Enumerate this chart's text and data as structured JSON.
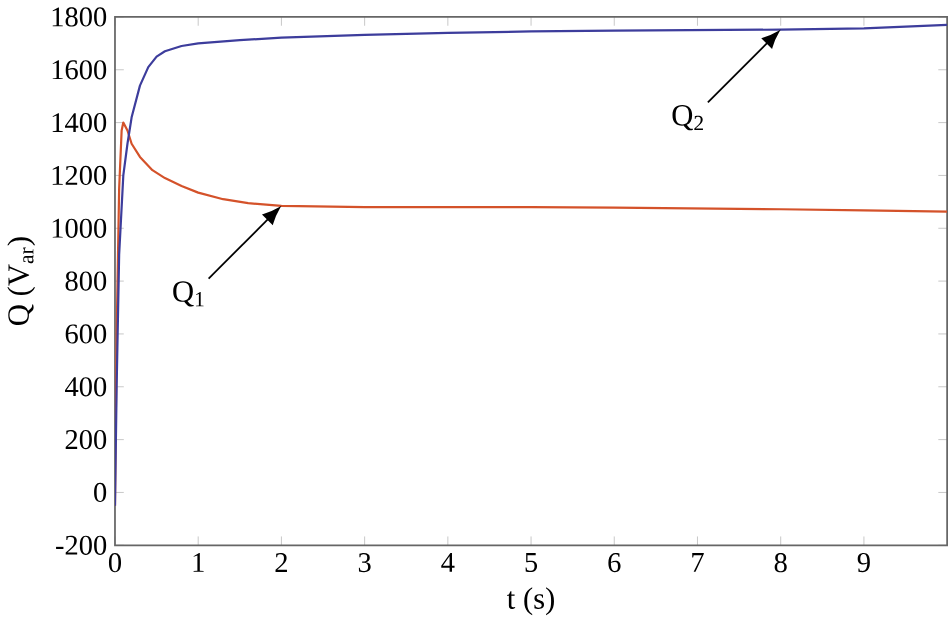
{
  "chart_data": {
    "type": "line",
    "xlabel": "t (s)",
    "ylabel": "Q (V$_{ar}$)",
    "xlim": [
      0,
      10
    ],
    "ylim": [
      -200,
      1800
    ],
    "xticks": [
      0,
      1,
      2,
      3,
      4,
      5,
      6,
      7,
      8,
      9
    ],
    "yticks": [
      -200,
      0,
      200,
      400,
      600,
      800,
      1000,
      1200,
      1400,
      1600,
      1800
    ],
    "series": [
      {
        "name": "Q$_{1}$",
        "color": "#d4522a",
        "x": [
          0,
          0.02,
          0.05,
          0.08,
          0.1,
          0.15,
          0.2,
          0.3,
          0.45,
          0.6,
          0.8,
          1,
          1.3,
          1.6,
          2,
          3,
          4,
          5,
          6,
          7,
          8,
          9,
          10
        ],
        "values": [
          -50,
          600,
          1150,
          1370,
          1400,
          1370,
          1320,
          1270,
          1220,
          1190,
          1160,
          1135,
          1110,
          1095,
          1085,
          1080,
          1080,
          1080,
          1078,
          1075,
          1072,
          1068,
          1063
        ]
      },
      {
        "name": "Q$_{2}$",
        "color": "#3d3d9c",
        "x": [
          0,
          0.02,
          0.05,
          0.1,
          0.15,
          0.2,
          0.3,
          0.4,
          0.5,
          0.6,
          0.8,
          1,
          1.5,
          2,
          3,
          4,
          5,
          6,
          7,
          8,
          9,
          10
        ],
        "values": [
          -50,
          400,
          900,
          1200,
          1320,
          1420,
          1540,
          1610,
          1650,
          1670,
          1690,
          1700,
          1712,
          1722,
          1732,
          1740,
          1745,
          1748,
          1750,
          1752,
          1757,
          1770
        ]
      }
    ]
  }
}
